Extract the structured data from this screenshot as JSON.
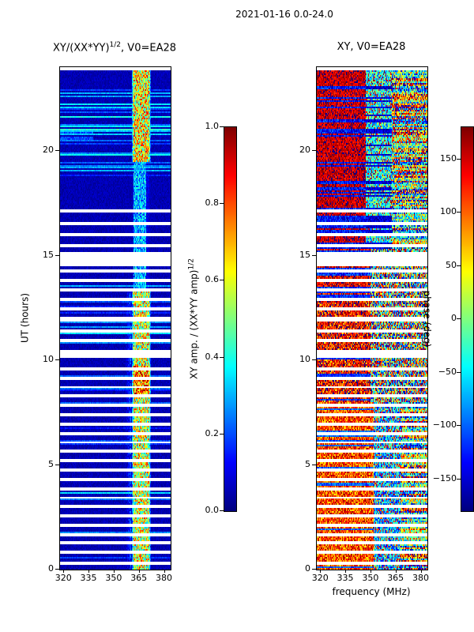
{
  "figure": {
    "suptitle": "2021-01-16 0.0-24.0",
    "background": "#ffffff"
  },
  "left_panel": {
    "title_prefix": "XY/(XX*YY)",
    "title_sup": "1/2",
    "title_suffix": ", V0=EA28",
    "ylabel": "UT (hours)"
  },
  "right_panel": {
    "title": "XY, V0=EA28",
    "xlabel": "frequency (MHz)"
  },
  "left_colorbar": {
    "label_prefix": "XY amp. / (XX*YY amp)",
    "label_sup": "1/2",
    "ticks": [
      {
        "label": "0.0",
        "value": 0.0
      },
      {
        "label": "0.2",
        "value": 0.2
      },
      {
        "label": "0.4",
        "value": 0.4
      },
      {
        "label": "0.6",
        "value": 0.6
      },
      {
        "label": "0.8",
        "value": 0.8
      },
      {
        "label": "1.0",
        "value": 1.0
      }
    ],
    "range": [
      0,
      1
    ]
  },
  "right_colorbar": {
    "label": "phase (deg)",
    "ticks": [
      {
        "label": "150",
        "value": 150
      },
      {
        "label": "100",
        "value": 100
      },
      {
        "label": "50",
        "value": 50
      },
      {
        "label": "0",
        "value": 0
      },
      {
        "label": "−50",
        "value": -50
      },
      {
        "label": "−100",
        "value": -100
      },
      {
        "label": "−150",
        "value": -150
      }
    ],
    "range": [
      -180,
      180
    ]
  },
  "axes": {
    "x_ticks": [
      {
        "label": "320",
        "value": 320
      },
      {
        "label": "335",
        "value": 335
      },
      {
        "label": "350",
        "value": 350
      },
      {
        "label": "365",
        "value": 365
      },
      {
        "label": "380",
        "value": 380
      }
    ],
    "y_ticks": [
      {
        "label": "0",
        "value": 0
      },
      {
        "label": "5",
        "value": 5
      },
      {
        "label": "10",
        "value": 10
      },
      {
        "label": "15",
        "value": 15
      },
      {
        "label": "20",
        "value": 20
      }
    ]
  },
  "data_gaps_ut": [
    [
      0.25,
      0.33
    ],
    [
      0.78,
      0.85
    ],
    [
      1.22,
      1.29
    ],
    [
      1.66,
      1.73
    ],
    [
      2.1,
      2.17
    ],
    [
      2.52,
      2.59
    ],
    [
      2.95,
      3.02
    ],
    [
      3.4,
      3.47
    ],
    [
      3.84,
      3.91
    ],
    [
      4.28,
      4.35
    ],
    [
      4.72,
      4.79
    ],
    [
      5.16,
      5.23
    ],
    [
      5.6,
      5.67
    ],
    [
      6.04,
      6.11
    ],
    [
      6.48,
      6.55
    ],
    [
      6.92,
      6.99
    ],
    [
      7.36,
      7.43
    ],
    [
      7.8,
      7.87
    ],
    [
      8.24,
      8.31
    ],
    [
      8.68,
      8.75
    ],
    [
      9.1,
      9.17
    ],
    [
      9.55,
      9.62
    ],
    [
      10.15,
      10.45
    ],
    [
      10.9,
      10.97
    ],
    [
      11.35,
      11.42
    ],
    [
      11.85,
      12.03
    ],
    [
      12.45,
      12.52
    ],
    [
      12.9,
      12.97
    ],
    [
      13.35,
      13.42
    ],
    [
      13.8,
      13.87
    ],
    [
      14.2,
      14.27
    ],
    [
      14.55,
      15.12
    ],
    [
      15.45,
      15.52
    ],
    [
      15.95,
      16.02
    ],
    [
      16.5,
      16.57
    ],
    [
      17.1,
      17.17
    ],
    [
      23.9,
      24.0
    ]
  ],
  "chart_data": [
    {
      "type": "heatmap",
      "title": "XY/(XX*YY)^(1/2), V0=EA28",
      "xlabel": "frequency (MHz)",
      "ylabel": "UT (hours)",
      "x_range": [
        318,
        384
      ],
      "y_range": [
        0,
        24
      ],
      "x_ticks": [
        320,
        335,
        350,
        365,
        380
      ],
      "y_ticks": [
        0,
        5,
        10,
        15,
        20
      ],
      "colormap": "jet",
      "colorbar": {
        "label": "XY amp. / (XX*YY amp)^(1/2)",
        "range": [
          0,
          1
        ],
        "ticks": [
          0.0,
          0.2,
          0.4,
          0.6,
          0.8,
          1.0
        ]
      },
      "description": "Normalized cross-power amplitude vs UT and frequency. Mostly dark blue (~0.02-0.1) background with thin white data-gap rows; bright speckled vertical band near 361-372 MHz (green/yellow/red, 0.3-1.0) strongest for UT 0-13 and UT 19.5-24, weaker cyan for UT 13-19.5; scattered light-blue horizontal stripes, dense around UT 19-23; thick white gap around UT 14.6-15.1.",
      "texture": {
        "seed": 1234,
        "base": [
          0.02,
          0.08
        ],
        "stripes": [
          {
            "ut": [
              0,
              13.3
            ],
            "prob": 0.16,
            "amp": [
              0.08,
              0.35
            ]
          },
          {
            "ut": [
              13.3,
              18.8
            ],
            "prob": 0.07,
            "amp": [
              0.06,
              0.25
            ]
          },
          {
            "ut": [
              18.8,
              23.2
            ],
            "prob": 0.4,
            "amp": [
              0.1,
              0.38
            ]
          },
          {
            "ut": [
              23.2,
              24
            ],
            "prob": 0.15,
            "amp": [
              0.08,
              0.3
            ]
          }
        ],
        "band": {
          "freq": [
            360.5,
            372.5
          ],
          "edge": 1.5,
          "segments": [
            {
              "ut": [
                0,
                8.2
              ],
              "v": [
                0.3,
                0.85
              ]
            },
            {
              "ut": [
                8.2,
                9.7
              ],
              "v": [
                0.5,
                1.0
              ]
            },
            {
              "ut": [
                9.7,
                13.3
              ],
              "v": [
                0.3,
                0.85
              ]
            },
            {
              "ut": [
                13.3,
                19.5
              ],
              "v": [
                0.15,
                0.45
              ],
              "freq": [
                362,
                369.5
              ]
            },
            {
              "ut": [
                19.5,
                24
              ],
              "v": [
                0.35,
                0.9
              ]
            }
          ]
        },
        "shoulder": {
          "freq": [
            356,
            360.5
          ],
          "ut": [
            0,
            13.3
          ],
          "v": [
            0.05,
            0.3
          ]
        },
        "patch": {
          "ut": [
            20.4,
            21.6
          ],
          "freq": [
            318,
            338
          ],
          "v": [
            0.12,
            0.35
          ]
        }
      }
    },
    {
      "type": "heatmap",
      "title": "XY, V0=EA28",
      "xlabel": "frequency (MHz)",
      "ylabel": "UT (hours)",
      "x_range": [
        318,
        384
      ],
      "y_range": [
        0,
        24
      ],
      "x_ticks": [
        320,
        335,
        350,
        365,
        380
      ],
      "y_ticks": [
        0,
        5,
        10,
        15,
        20
      ],
      "colormap": "jet",
      "colorbar": {
        "label": "phase (deg)",
        "range": [
          -180,
          180
        ],
        "ticks": [
          150,
          100,
          50,
          0,
          -50,
          -100,
          -150
        ]
      },
      "description": "Cross-power phase (deg) vs UT and frequency. Saturated jet-colored speckle with strong horizontal row coherence: red/orange dominated left half (320-350 MHz) for UT 8-24 with interleaved blue rows; cyan/green zone ~347-363 MHz for UT 15-24; orange/yellow lower third (UT 0-8) with cyan/blue patches at 352-368 MHz; multicolor random speckle on the right side; same white data-gap rows as left panel.",
      "texture": {
        "seed": 987,
        "regions": [
          {
            "ut": [
              15.3,
              24
            ],
            "freq": [
              318,
              347
            ],
            "base": 155,
            "spread": 70,
            "altProb": 0.28,
            "altBase": -130,
            "altSpread": 80
          },
          {
            "ut": [
              15.3,
              24
            ],
            "freq": [
              347,
              363
            ],
            "base": -40,
            "spread": 140,
            "altProb": 0.3,
            "altBase": -150,
            "altSpread": 60,
            "hotProb": 0.15,
            "hotBase": 150,
            "hotSpread": 50
          },
          {
            "ut": [
              15.3,
              24
            ],
            "freq": [
              363,
              384
            ],
            "rowmix": true,
            "spread": 220
          },
          {
            "ut": [
              13.3,
              15.3
            ],
            "freq": [
              318,
              350
            ],
            "base": 140,
            "spread": 100,
            "altProb": 0.45,
            "altBase": -120,
            "altSpread": 80
          },
          {
            "ut": [
              13.3,
              15.3
            ],
            "freq": [
              350,
              384
            ],
            "random": true
          },
          {
            "ut": [
              8,
              13.3
            ],
            "freq": [
              318,
              350
            ],
            "base": 140,
            "spread": 110,
            "altProb": 0.15,
            "altBase": -120,
            "altSpread": 70,
            "hotProb": 0.1,
            "hotBase": 60,
            "hotSpread": 40
          },
          {
            "ut": [
              8,
              13.3
            ],
            "freq": [
              350,
              384
            ],
            "random": true
          },
          {
            "ut": [
              0,
              8
            ],
            "freq": [
              318,
              352
            ],
            "base": 110,
            "spread": 130,
            "altProb": 0.12,
            "altBase": -100,
            "altSpread": 60
          },
          {
            "ut": [
              0,
              8
            ],
            "freq": [
              352,
              368
            ],
            "base": -70,
            "spread": 160,
            "hotProb": 0.2,
            "hotBase": 120,
            "hotSpread": 80
          },
          {
            "ut": [
              0,
              8
            ],
            "freq": [
              368,
              384
            ],
            "rowmix": true,
            "spread": 200
          }
        ]
      }
    }
  ]
}
